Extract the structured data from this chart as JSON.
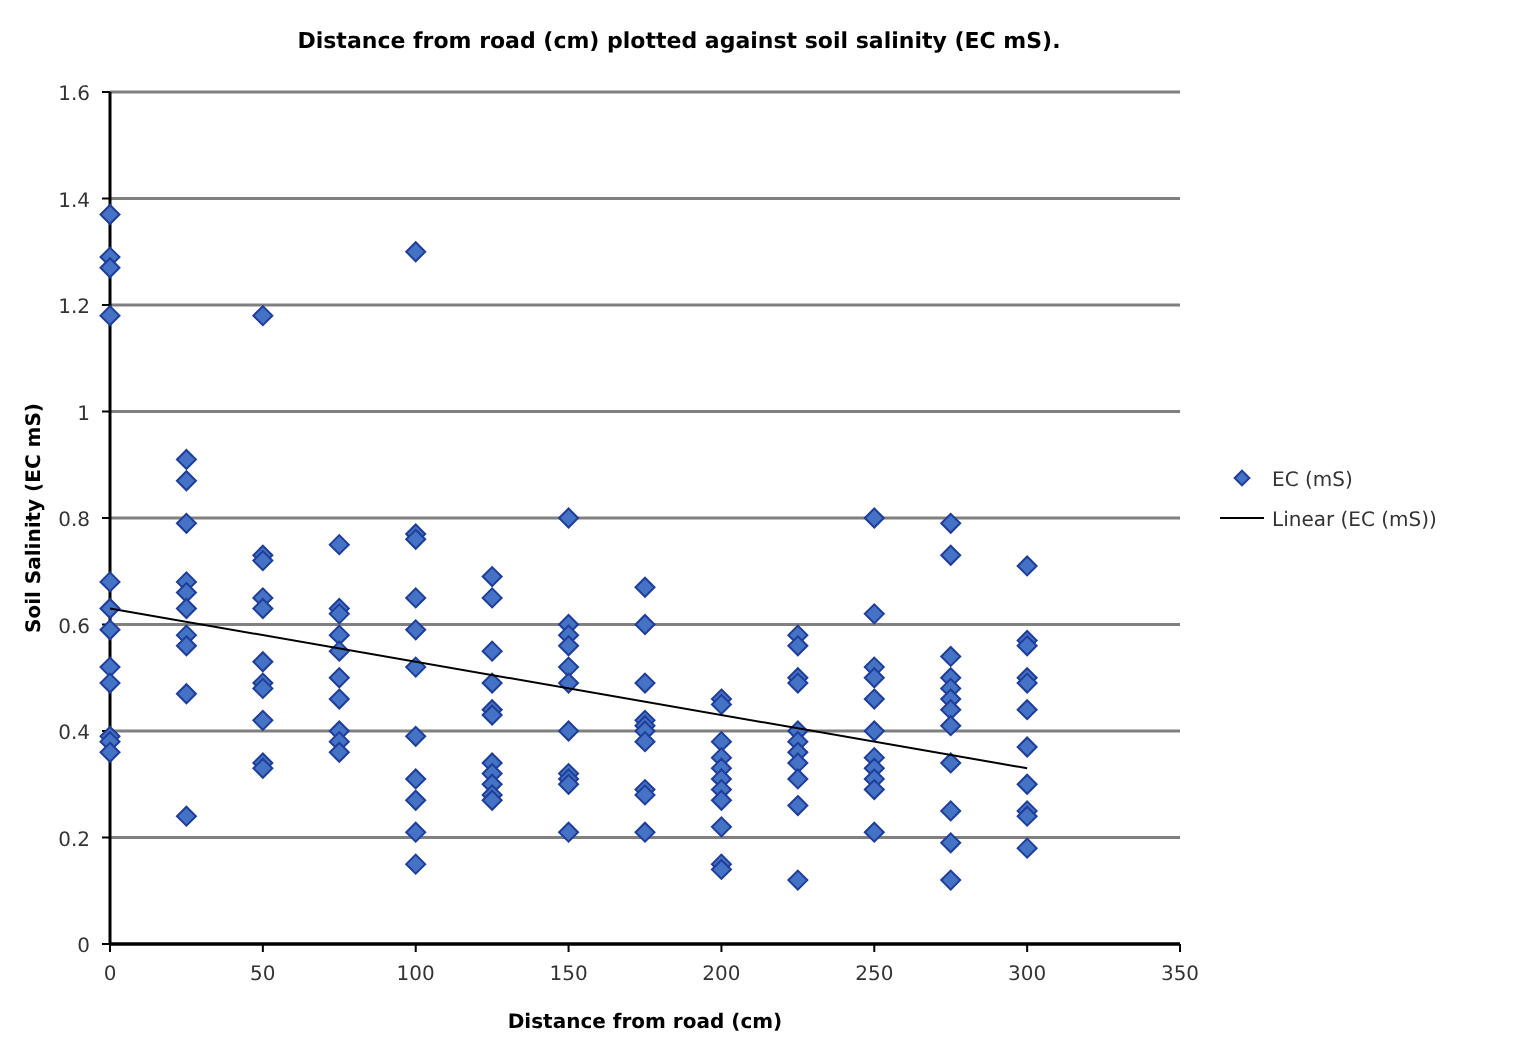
{
  "chart_data": {
    "type": "scatter",
    "title": "Distance from road (cm) plotted against soil salinity (EC mS).",
    "xlabel": "Distance from road (cm)",
    "ylabel": "Soil Salinity (EC mS)",
    "xlim": [
      0,
      350
    ],
    "xticks": [
      0,
      50,
      100,
      150,
      200,
      250,
      300,
      350
    ],
    "ylim": [
      0,
      1.6
    ],
    "yticks": [
      0,
      0.2,
      0.4,
      0.6,
      0.8,
      1,
      1.2,
      1.4,
      1.6
    ],
    "grid": "y",
    "legend": "right",
    "series": [
      {
        "name": "EC (mS)",
        "marker": "diamond",
        "color": "#4472c4",
        "x": [
          0,
          0,
          0,
          0,
          0,
          0,
          0,
          0,
          0,
          0,
          0,
          0,
          25,
          25,
          25,
          25,
          25,
          25,
          25,
          25,
          25,
          25,
          50,
          50,
          50,
          50,
          50,
          50,
          50,
          50,
          50,
          50,
          50,
          75,
          75,
          75,
          75,
          75,
          75,
          75,
          75,
          75,
          75,
          100,
          100,
          100,
          100,
          100,
          100,
          100,
          100,
          100,
          100,
          100,
          125,
          125,
          125,
          125,
          125,
          125,
          125,
          125,
          125,
          125,
          125,
          150,
          150,
          150,
          150,
          150,
          150,
          150,
          150,
          150,
          150,
          150,
          175,
          175,
          175,
          175,
          175,
          175,
          175,
          175,
          175,
          175,
          200,
          200,
          200,
          200,
          200,
          200,
          200,
          200,
          200,
          200,
          200,
          225,
          225,
          225,
          225,
          225,
          225,
          225,
          225,
          225,
          225,
          225,
          250,
          250,
          250,
          250,
          250,
          250,
          250,
          250,
          250,
          250,
          250,
          275,
          275,
          275,
          275,
          275,
          275,
          275,
          275,
          275,
          275,
          275,
          275,
          300,
          300,
          300,
          300,
          300,
          300,
          300,
          300,
          300,
          300,
          300
        ],
        "values": [
          1.37,
          1.29,
          1.27,
          1.18,
          0.68,
          0.63,
          0.59,
          0.52,
          0.49,
          0.39,
          0.38,
          0.36,
          0.91,
          0.87,
          0.79,
          0.68,
          0.66,
          0.63,
          0.58,
          0.56,
          0.47,
          0.24,
          1.18,
          0.73,
          0.72,
          0.65,
          0.63,
          0.53,
          0.49,
          0.48,
          0.42,
          0.34,
          0.33,
          0.75,
          0.63,
          0.62,
          0.58,
          0.55,
          0.5,
          0.46,
          0.4,
          0.38,
          0.36,
          1.3,
          0.77,
          0.76,
          0.65,
          0.59,
          0.52,
          0.39,
          0.31,
          0.27,
          0.21,
          0.15,
          0.69,
          0.65,
          0.55,
          0.49,
          0.44,
          0.43,
          0.34,
          0.32,
          0.3,
          0.28,
          0.27,
          0.8,
          0.6,
          0.58,
          0.56,
          0.52,
          0.49,
          0.4,
          0.32,
          0.31,
          0.3,
          0.21,
          0.67,
          0.6,
          0.49,
          0.42,
          0.41,
          0.4,
          0.38,
          0.29,
          0.28,
          0.21,
          0.46,
          0.45,
          0.38,
          0.35,
          0.33,
          0.31,
          0.29,
          0.27,
          0.22,
          0.15,
          0.14,
          0.58,
          0.56,
          0.5,
          0.49,
          0.4,
          0.38,
          0.36,
          0.34,
          0.31,
          0.26,
          0.12,
          0.8,
          0.62,
          0.52,
          0.5,
          0.46,
          0.4,
          0.35,
          0.33,
          0.31,
          0.29,
          0.21,
          0.79,
          0.73,
          0.54,
          0.5,
          0.48,
          0.46,
          0.44,
          0.41,
          0.34,
          0.25,
          0.19,
          0.12,
          0.71,
          0.57,
          0.56,
          0.5,
          0.49,
          0.44,
          0.37,
          0.3,
          0.25,
          0.24,
          0.18
        ]
      },
      {
        "name": "Linear (EC (mS))",
        "type": "line",
        "marker": "none",
        "color": "#000000",
        "x": [
          0,
          300
        ],
        "values": [
          0.63,
          0.33
        ]
      }
    ]
  }
}
